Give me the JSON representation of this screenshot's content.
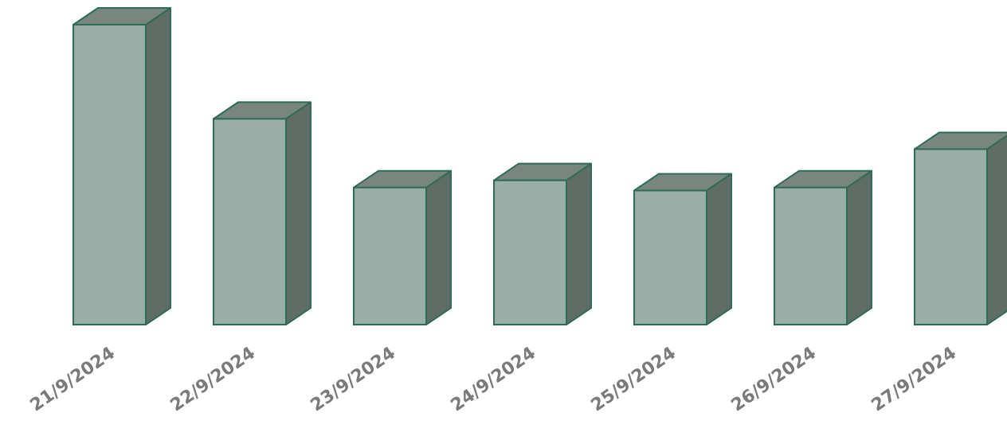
{
  "chart_data": {
    "type": "bar",
    "style": "3d-column",
    "categories": [
      "21/9/2024",
      "22/9/2024",
      "23/9/2024",
      "24/9/2024",
      "25/9/2024",
      "26/9/2024",
      "27/9/2024"
    ],
    "values": [
      100,
      68.6,
      45.7,
      48.1,
      44.7,
      45.7,
      58.5
    ],
    "ylim": [
      0,
      100
    ],
    "grid": false,
    "legend": "none",
    "xlabel": "",
    "ylabel": "",
    "title": "",
    "colors": {
      "front": "#99aea6",
      "top": "#78867f",
      "side": "#606d67",
      "outline": "#2f6b55",
      "tick_text": "#7a7a7a"
    }
  }
}
